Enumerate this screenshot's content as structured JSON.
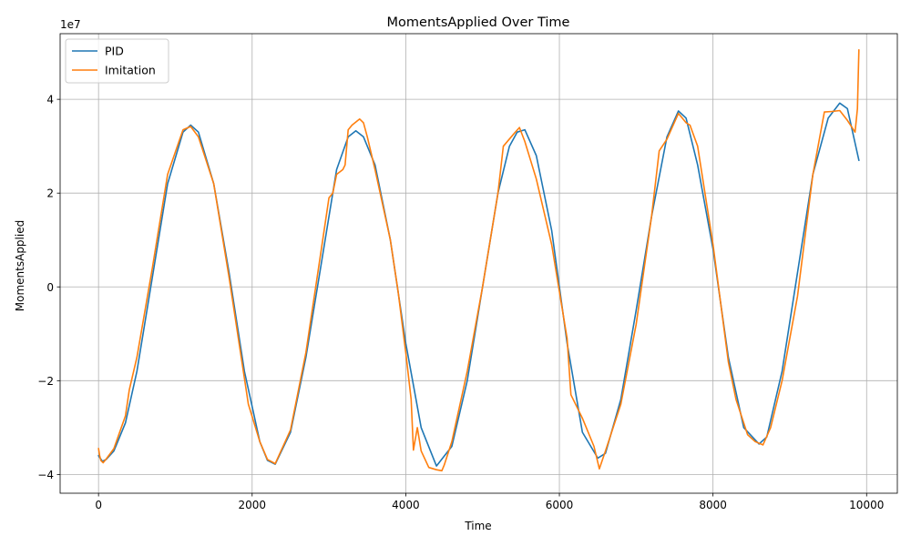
{
  "chart_data": {
    "type": "line",
    "title": "MomentsApplied Over Time",
    "xlabel": "Time",
    "ylabel": "MomentsApplied",
    "y_offset_label": "1e7",
    "xlim": [
      -500,
      10400
    ],
    "ylim": [
      -44000000,
      54000000
    ],
    "xticks": [
      0,
      2000,
      4000,
      6000,
      8000,
      10000
    ],
    "xtick_labels": [
      "0",
      "2000",
      "4000",
      "6000",
      "8000",
      "10000"
    ],
    "yticks": [
      -40000000,
      -20000000,
      0,
      20000000,
      40000000
    ],
    "ytick_labels": [
      "−4",
      "−2",
      "0",
      "2",
      "4"
    ],
    "grid": true,
    "legend_position": "upper-left",
    "series": [
      {
        "name": "PID",
        "color": "#1f77b4",
        "x": [
          0,
          50,
          100,
          200,
          350,
          500,
          700,
          900,
          1100,
          1200,
          1300,
          1500,
          1700,
          1900,
          2100,
          2200,
          2300,
          2500,
          2700,
          2900,
          3100,
          3250,
          3350,
          3450,
          3600,
          3800,
          4000,
          4200,
          4400,
          4600,
          4800,
          5000,
          5200,
          5350,
          5450,
          5550,
          5700,
          5900,
          6100,
          6300,
          6500,
          6600,
          6800,
          7000,
          7200,
          7400,
          7550,
          7650,
          7800,
          8000,
          8200,
          8400,
          8600,
          8700,
          8900,
          9100,
          9300,
          9500,
          9650,
          9750,
          9900
        ],
        "y": [
          -36000000,
          -37200000,
          -36800000,
          -35000000,
          -29000000,
          -18000000,
          2000000,
          22000000,
          33000000,
          34500000,
          33000000,
          22000000,
          3000000,
          -18000000,
          -33000000,
          -37000000,
          -37800000,
          -31000000,
          -15000000,
          5000000,
          25000000,
          32000000,
          33300000,
          32000000,
          26000000,
          10000000,
          -12000000,
          -30000000,
          -38200000,
          -34000000,
          -20000000,
          0,
          20000000,
          30000000,
          33000000,
          33500000,
          28000000,
          12000000,
          -12000000,
          -31000000,
          -36500000,
          -35500000,
          -24000000,
          -5000000,
          15000000,
          32000000,
          37500000,
          36000000,
          26000000,
          8000000,
          -15000000,
          -30000000,
          -33500000,
          -32000000,
          -18000000,
          3000000,
          24000000,
          36000000,
          39200000,
          38000000,
          27000000
        ]
      },
      {
        "name": "Imitation",
        "color": "#ff7f0e",
        "x": [
          0,
          15,
          30,
          60,
          100,
          200,
          350,
          400,
          500,
          700,
          900,
          1100,
          1200,
          1300,
          1500,
          1700,
          1950,
          2100,
          2200,
          2300,
          2500,
          2700,
          2900,
          3000,
          3050,
          3100,
          3180,
          3210,
          3250,
          3300,
          3400,
          3450,
          3500,
          3600,
          3800,
          3900,
          4000,
          4070,
          4100,
          4150,
          4200,
          4300,
          4400,
          4470,
          4500,
          4600,
          4800,
          5000,
          5200,
          5270,
          5400,
          5480,
          5550,
          5700,
          5900,
          6100,
          6150,
          6300,
          6450,
          6520,
          6600,
          6800,
          7000,
          7200,
          7300,
          7400,
          7550,
          7650,
          7700,
          7800,
          8000,
          8200,
          8300,
          8450,
          8550,
          8650,
          8750,
          8900,
          9100,
          9300,
          9450,
          9550,
          9650,
          9750,
          9850,
          9880,
          9900
        ],
        "y": [
          -34500000,
          -36000000,
          -37000000,
          -37500000,
          -36700000,
          -34500000,
          -27500000,
          -22000000,
          -15000000,
          4000000,
          24000000,
          33500000,
          34200000,
          32000000,
          22000000,
          2000000,
          -25000000,
          -33000000,
          -36800000,
          -37700000,
          -30500000,
          -14000000,
          8000000,
          19000000,
          20000000,
          24000000,
          25000000,
          26000000,
          33500000,
          34500000,
          35800000,
          35000000,
          32000000,
          25000000,
          10000000,
          -1000000,
          -14000000,
          -24000000,
          -34800000,
          -30000000,
          -35000000,
          -38500000,
          -39000000,
          -39200000,
          -38000000,
          -33000000,
          -18000000,
          0,
          20000000,
          30000000,
          32500000,
          34000000,
          31000000,
          23000000,
          9000000,
          -11000000,
          -23000000,
          -28000000,
          -34000000,
          -38800000,
          -35000000,
          -25000000,
          -8000000,
          15000000,
          29000000,
          31500000,
          37000000,
          35000000,
          34500000,
          30000000,
          9000000,
          -16000000,
          -24000000,
          -31500000,
          -33000000,
          -33700000,
          -30000000,
          -20000000,
          -2000000,
          24000000,
          37300000,
          37400000,
          37600000,
          35500000,
          33000000,
          38000000,
          50500000
        ]
      }
    ]
  }
}
